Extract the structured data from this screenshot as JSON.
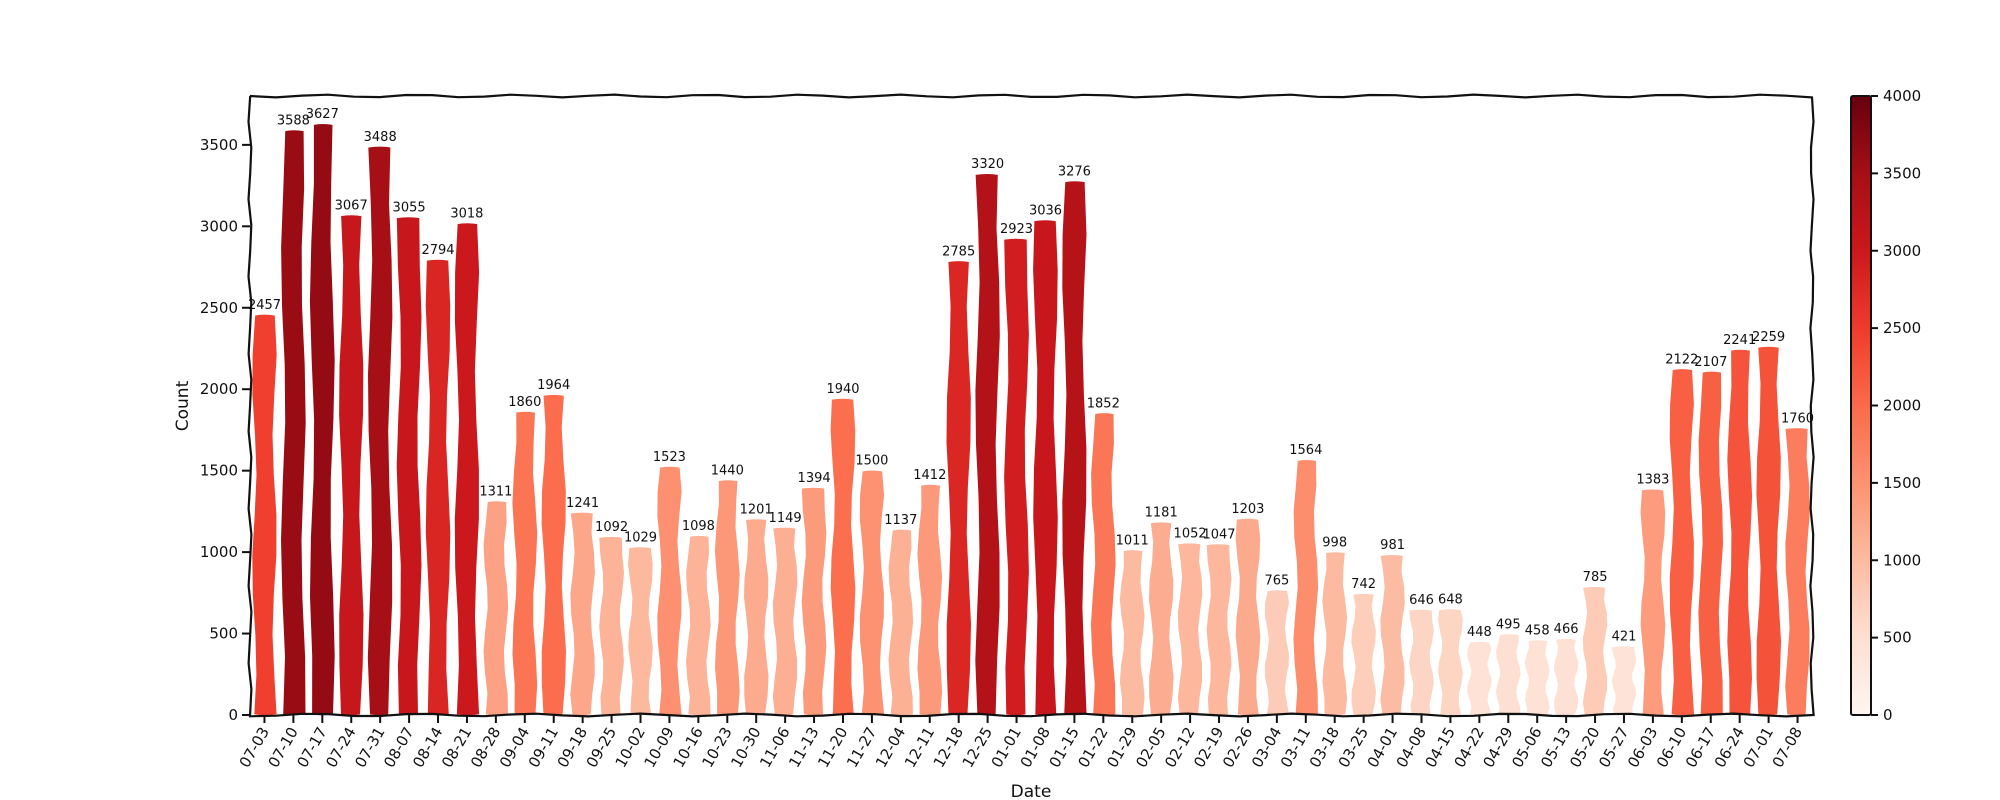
{
  "chart_data": {
    "type": "bar",
    "title": "",
    "xlabel": "Date",
    "ylabel": "Count",
    "ylim": [
      0,
      3800
    ],
    "yticks": [
      0,
      500,
      1000,
      1500,
      2000,
      2500,
      3000,
      3500
    ],
    "categories": [
      "07-03",
      "07-10",
      "07-17",
      "07-24",
      "07-31",
      "08-07",
      "08-14",
      "08-21",
      "08-28",
      "09-04",
      "09-11",
      "09-18",
      "09-25",
      "10-02",
      "10-09",
      "10-16",
      "10-23",
      "10-30",
      "11-06",
      "11-13",
      "11-20",
      "11-27",
      "12-04",
      "12-11",
      "12-18",
      "12-25",
      "01-01",
      "01-08",
      "01-15",
      "01-22",
      "01-29",
      "02-05",
      "02-12",
      "02-19",
      "02-26",
      "03-04",
      "03-11",
      "03-18",
      "03-25",
      "04-01",
      "04-08",
      "04-15",
      "04-22",
      "04-29",
      "05-06",
      "05-13",
      "05-20",
      "05-27",
      "06-03",
      "06-10",
      "06-17",
      "06-24",
      "07-01",
      "07-08"
    ],
    "values": [
      2457,
      3588,
      3627,
      3067,
      3488,
      3055,
      2794,
      3018,
      1311,
      1860,
      1964,
      1241,
      1092,
      1029,
      1523,
      1098,
      1440,
      1201,
      1149,
      1394,
      1940,
      1500,
      1137,
      1412,
      2785,
      3320,
      2923,
      3036,
      3276,
      1852,
      1011,
      1181,
      1052,
      1047,
      1203,
      765,
      1564,
      998,
      742,
      981,
      646,
      648,
      448,
      495,
      458,
      466,
      785,
      421,
      1383,
      2122,
      2107,
      2241,
      2259,
      1760
    ],
    "colorbar": {
      "min": 0,
      "max": 4000,
      "ticks": [
        0,
        500,
        1000,
        1500,
        2000,
        2500,
        3000,
        3500,
        4000
      ],
      "colormap": "Reds",
      "colors": [
        "#fff5f0",
        "#fee0d2",
        "#fcbba1",
        "#fc9272",
        "#fb6a4a",
        "#ef3b2c",
        "#cb181d",
        "#a50f15",
        "#67000d"
      ]
    },
    "grid": false,
    "style": "hand-drawn"
  }
}
